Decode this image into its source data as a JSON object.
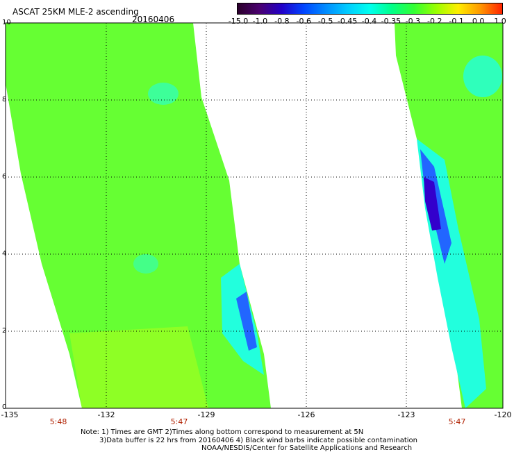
{
  "header": {
    "title": "ASCAT 25KM MLE-2 ascending",
    "date": "20160406"
  },
  "colorbar": {
    "labels": [
      "-15.0",
      "-1.0",
      "-0.8",
      "-0.6",
      "-0.5",
      "-0.45",
      "-0.4",
      "-0.35",
      "-0.3",
      "-0.2",
      "-0.1",
      "0.0",
      "1.0"
    ],
    "colors": [
      "#2b002b",
      "#4a0070",
      "#2200c8",
      "#0044ff",
      "#008cff",
      "#00ccff",
      "#00ffee",
      "#00ff88",
      "#33ff33",
      "#99ff00",
      "#ffee00",
      "#ff9900",
      "#ff2200"
    ]
  },
  "map": {
    "lat_labels": [
      "0",
      "2",
      "4",
      "6",
      "8",
      "10"
    ],
    "lon_labels": [
      "-135",
      "-132",
      "-129",
      "-126",
      "-123",
      "-120"
    ],
    "pass_times": [
      "5:48",
      "5:47",
      "5:47"
    ],
    "swath_colors": {
      "background": "#66ff33",
      "light": "#99ff22",
      "cyan": "#22ffdd",
      "blue": "#2266ff",
      "violet": "#3300cc"
    }
  },
  "notes": {
    "line1": "Note: 1) Times are GMT 2)Times along bottom correspond to measurement at 5N",
    "line2": "3)Data buffer is 22 hrs from 20160406 4) Black wind barbs indicate possible contamination",
    "line3": "NOAA/NESDIS/Center for Satellite Applications and Research"
  }
}
